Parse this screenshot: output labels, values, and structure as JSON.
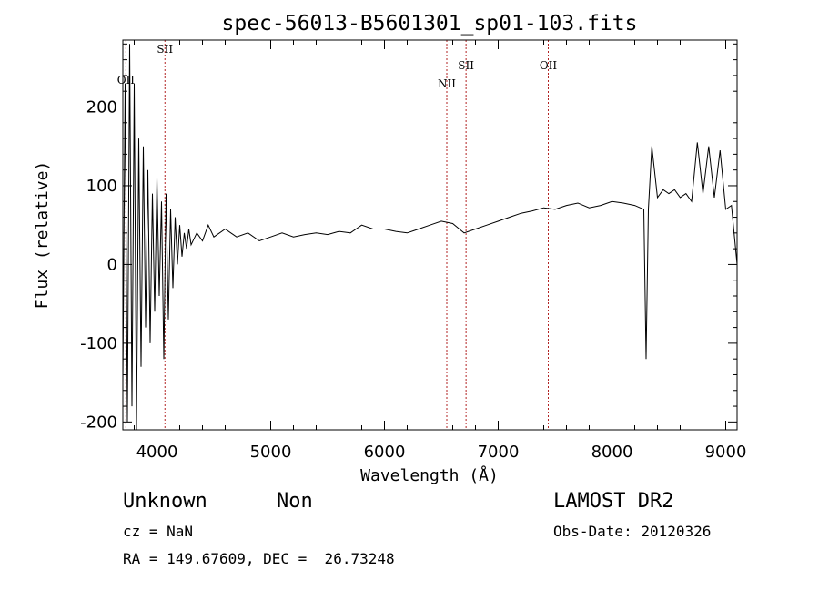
{
  "chart_data": {
    "type": "line",
    "title": "spec-56013-B5601301_sp01-103.fits",
    "xlabel": "Wavelength (Å)",
    "ylabel": "Flux (relative)",
    "xlim": [
      3700,
      9100
    ],
    "ylim": [
      -210,
      285
    ],
    "xticks": [
      4000,
      5000,
      6000,
      7000,
      8000,
      9000
    ],
    "yticks": [
      -200,
      -100,
      0,
      100,
      200
    ],
    "grid": false,
    "series": [
      {
        "values": [
          [
            3700,
            -150
          ],
          [
            3720,
            230
          ],
          [
            3740,
            -200
          ],
          [
            3760,
            280
          ],
          [
            3780,
            -180
          ],
          [
            3800,
            230
          ],
          [
            3820,
            -210
          ],
          [
            3840,
            160
          ],
          [
            3860,
            -130
          ],
          [
            3880,
            150
          ],
          [
            3900,
            -80
          ],
          [
            3920,
            120
          ],
          [
            3940,
            -100
          ],
          [
            3960,
            90
          ],
          [
            3980,
            -60
          ],
          [
            4000,
            110
          ],
          [
            4020,
            -40
          ],
          [
            4040,
            80
          ],
          [
            4060,
            -120
          ],
          [
            4080,
            90
          ],
          [
            4100,
            -70
          ],
          [
            4120,
            70
          ],
          [
            4140,
            -30
          ],
          [
            4160,
            60
          ],
          [
            4180,
            0
          ],
          [
            4200,
            50
          ],
          [
            4220,
            10
          ],
          [
            4240,
            40
          ],
          [
            4260,
            20
          ],
          [
            4280,
            45
          ],
          [
            4300,
            25
          ],
          [
            4350,
            40
          ],
          [
            4400,
            30
          ],
          [
            4450,
            50
          ],
          [
            4500,
            35
          ],
          [
            4600,
            45
          ],
          [
            4700,
            35
          ],
          [
            4800,
            40
          ],
          [
            4900,
            30
          ],
          [
            5000,
            35
          ],
          [
            5100,
            40
          ],
          [
            5200,
            35
          ],
          [
            5300,
            38
          ],
          [
            5400,
            40
          ],
          [
            5500,
            38
          ],
          [
            5600,
            42
          ],
          [
            5700,
            40
          ],
          [
            5800,
            50
          ],
          [
            5900,
            45
          ],
          [
            6000,
            45
          ],
          [
            6100,
            42
          ],
          [
            6200,
            40
          ],
          [
            6300,
            45
          ],
          [
            6400,
            50
          ],
          [
            6500,
            55
          ],
          [
            6600,
            52
          ],
          [
            6700,
            40
          ],
          [
            6800,
            45
          ],
          [
            6900,
            50
          ],
          [
            7000,
            55
          ],
          [
            7100,
            60
          ],
          [
            7200,
            65
          ],
          [
            7300,
            68
          ],
          [
            7400,
            72
          ],
          [
            7500,
            70
          ],
          [
            7600,
            75
          ],
          [
            7700,
            78
          ],
          [
            7800,
            72
          ],
          [
            7900,
            75
          ],
          [
            8000,
            80
          ],
          [
            8100,
            78
          ],
          [
            8200,
            75
          ],
          [
            8280,
            70
          ],
          [
            8300,
            -120
          ],
          [
            8320,
            70
          ],
          [
            8350,
            150
          ],
          [
            8400,
            85
          ],
          [
            8450,
            95
          ],
          [
            8500,
            90
          ],
          [
            8550,
            95
          ],
          [
            8600,
            85
          ],
          [
            8650,
            90
          ],
          [
            8700,
            80
          ],
          [
            8750,
            155
          ],
          [
            8800,
            90
          ],
          [
            8850,
            150
          ],
          [
            8900,
            85
          ],
          [
            8950,
            145
          ],
          [
            9000,
            70
          ],
          [
            9050,
            75
          ],
          [
            9100,
            0
          ]
        ]
      }
    ],
    "lines": [
      {
        "label": "OII",
        "x": 3727
      },
      {
        "label": "SII",
        "x": 4070
      },
      {
        "label": "NII",
        "x": 6548
      },
      {
        "label": "SII",
        "x": 6717
      },
      {
        "label": "OII",
        "x": 7440
      }
    ]
  },
  "info": {
    "class": "Unknown",
    "subclass": "Non",
    "cz": "cz = NaN",
    "radec": "RA = 149.67609, DEC =  26.73248",
    "survey": "LAMOST DR2",
    "obsdate": "Obs-Date: 20120326"
  }
}
